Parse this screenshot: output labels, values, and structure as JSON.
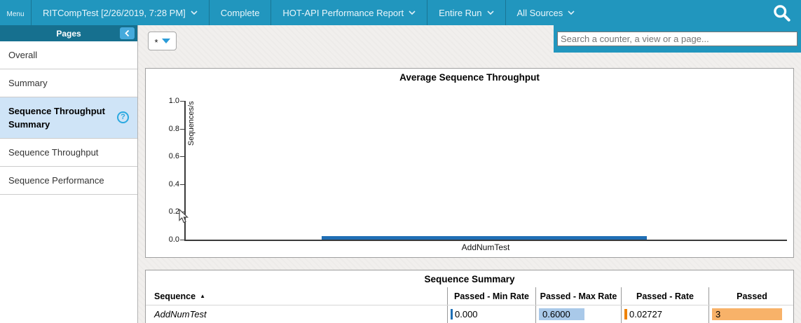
{
  "topbar": {
    "menu_label": "Menu",
    "report_selector": "RITCompTest [2/26/2019, 7:28 PM]",
    "status": "Complete",
    "report_type": "HOT-API Performance Report",
    "run_selector": "Entire Run",
    "sources_selector": "All Sources"
  },
  "sidebar": {
    "header": "Pages",
    "items": [
      {
        "label": "Overall",
        "selected": false
      },
      {
        "label": "Summary",
        "selected": false
      },
      {
        "label": "Sequence Throughput Summary",
        "selected": true
      },
      {
        "label": "Sequence Throughput",
        "selected": false
      },
      {
        "label": "Sequence Performance",
        "selected": false
      }
    ]
  },
  "toolbar": {
    "filter_button_label": "*",
    "search_placeholder": "Search a counter, a view or a page..."
  },
  "icons": {
    "help_glyph": "?",
    "sort_asc_glyph": "▲",
    "collapse_glyph": "‹"
  },
  "chart_data": {
    "type": "bar",
    "title": "Average Sequence Throughput",
    "ylabel": "Sequences/s",
    "xlabel": "",
    "categories": [
      "AddNumTest"
    ],
    "values": [
      0.02727
    ],
    "ylim": [
      0,
      1
    ],
    "ytick_labels": [
      "1.0",
      "0.8",
      "0.6",
      "0.4",
      "0.2",
      "0.0"
    ],
    "grid": false,
    "legend": "none",
    "bar_color": "#1f6fb5"
  },
  "table": {
    "title": "Sequence Summary",
    "columns": [
      "Sequence",
      "Passed - Min Rate",
      "Passed - Max Rate",
      "Passed - Rate",
      "Passed"
    ],
    "sort_column": "Sequence",
    "sort_direction": "ascending",
    "rows": [
      {
        "sequence": "AddNumTest",
        "min_rate": "0.000",
        "min_rate_val": 0.0,
        "max_rate": "0.6000",
        "max_rate_val": 0.6,
        "rate": "0.02727",
        "rate_val": 0.02727,
        "passed": "3",
        "passed_val": 3,
        "passed_max": 3
      }
    ]
  },
  "colors": {
    "topbar": "#2196be",
    "sidebar_header": "#16708f",
    "selected_item_bg": "#cfe4f7",
    "help_icon": "#2ba9e0",
    "chart_bar": "#1f6fb5",
    "cell_bar_blue": "#a9c9e9",
    "cell_bar_orange": "#f8b269",
    "cell_tick_orange": "#ef8201"
  }
}
